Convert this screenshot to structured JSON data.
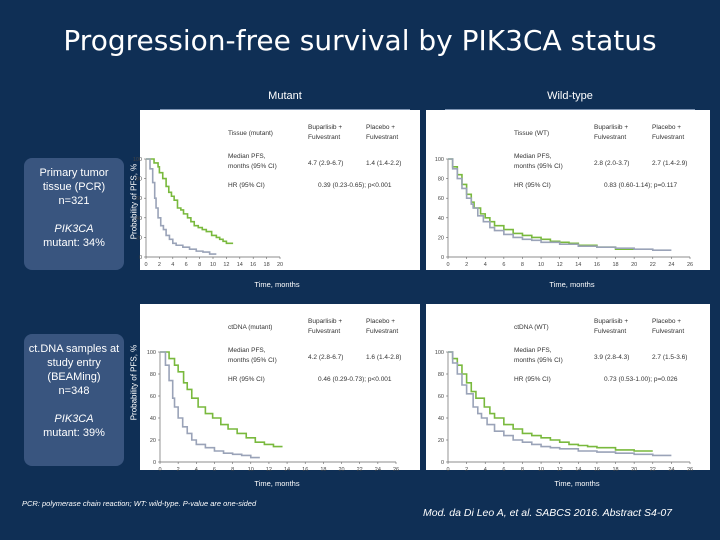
{
  "title": "Progression-free survival by PIK3CA status",
  "columns": {
    "mutant": "Mutant",
    "wildtype": "Wild-type"
  },
  "rows": [
    {
      "box": [
        "Primary tumor tissue (PCR)",
        "n=321",
        "PIK3CA",
        "mutant: 34%"
      ]
    },
    {
      "box": [
        "ct.DNA samples at study entry (BEAMing)",
        "n=348",
        "PIK3CA",
        "mutant: 39%"
      ]
    }
  ],
  "ylabel": "Probability of PFS, %",
  "xlabel": "Time, months",
  "footnote": "PCR: polymerase chain reaction; WT: wild-type. P-value are one-sided",
  "reference": "Mod. da Di Leo A, et al. SABCS 2016. Abstract S4-07",
  "colors": {
    "buparlisib": "#79b93d",
    "placebo": "#9aa3b8",
    "panel": "#ffffff",
    "box": "#39557f",
    "bg": "#0f2f55"
  },
  "chart_data": [
    {
      "type": "line",
      "tables": {
        "label": "Tissue (mutant)",
        "col1": "Buparlisib + Fulvestrant",
        "col2": "Placebo + Fulvestrant",
        "median_label": "Median PFS, months (95% CI)",
        "median1": "4.7 (2.9-6.7)",
        "median2": "1.4 (1.4-2.2)",
        "hr_label": "HR (95% CI)",
        "hr": "0.39 (0.23-0.65); p<0.001"
      },
      "yticks": [
        "100",
        "80",
        "60",
        "40",
        "20",
        "0"
      ],
      "xticks": [
        "0",
        "2",
        "4",
        "6",
        "8",
        "10",
        "12",
        "14",
        "16",
        "18",
        "20"
      ],
      "xlim": [
        0,
        20
      ],
      "ylim": [
        0,
        100
      ],
      "series": [
        {
          "key": "buparlisib",
          "x": [
            0,
            1.2,
            1.8,
            2,
            2.5,
            3,
            3.4,
            3.8,
            4.2,
            4.7,
            5.2,
            5.6,
            6.2,
            6.7,
            7.2,
            7.8,
            8.4,
            9,
            9.8,
            10.5,
            11,
            11.5,
            12,
            13
          ],
          "y": [
            100,
            96,
            92,
            86,
            80,
            72,
            66,
            62,
            58,
            50,
            48,
            44,
            40,
            36,
            32,
            30,
            28,
            26,
            22,
            20,
            18,
            16,
            14,
            14
          ]
        },
        {
          "key": "placebo",
          "x": [
            0,
            0.6,
            1,
            1.3,
            1.5,
            1.8,
            2.2,
            2.6,
            3,
            3.5,
            4,
            4.5,
            5.5,
            6.5,
            7.5,
            8.5,
            9.5,
            10.5
          ],
          "y": [
            100,
            90,
            76,
            60,
            50,
            40,
            32,
            28,
            22,
            18,
            14,
            12,
            10,
            8,
            6,
            5,
            3,
            3
          ]
        }
      ]
    },
    {
      "type": "line",
      "tables": {
        "label": "Tissue (WT)",
        "col1": "Buparlisib + Fulvestrant",
        "col2": "Placebo + Fulvestrant",
        "median_label": "Median PFS, months (95% CI)",
        "median1": "2.8 (2.0-3.7)",
        "median2": "2.7 (1.4-2.9)",
        "hr_label": "HR (95% CI)",
        "hr": "0.83 (0.60-1.14); p=0.117"
      },
      "yticks": [
        "100",
        "80",
        "60",
        "40",
        "20",
        "0"
      ],
      "xticks": [
        "0",
        "2",
        "4",
        "6",
        "8",
        "10",
        "12",
        "14",
        "16",
        "18",
        "20",
        "22",
        "24",
        "26"
      ],
      "xlim": [
        0,
        26
      ],
      "ylim": [
        0,
        100
      ],
      "series": [
        {
          "key": "buparlisib",
          "x": [
            0,
            0.5,
            1,
            1.5,
            2,
            2.5,
            2.8,
            3.5,
            4,
            4.5,
            5,
            6,
            7,
            8,
            9,
            10,
            11,
            12,
            13,
            14,
            16,
            18,
            20
          ],
          "y": [
            100,
            92,
            84,
            74,
            64,
            56,
            50,
            44,
            40,
            36,
            32,
            28,
            24,
            22,
            20,
            18,
            16,
            15,
            14,
            12,
            10,
            8,
            8
          ]
        },
        {
          "key": "placebo",
          "x": [
            0,
            0.5,
            1,
            1.5,
            2,
            2.5,
            2.7,
            3.2,
            3.8,
            4.5,
            5,
            6,
            7,
            8,
            9,
            10,
            12,
            14,
            16,
            18,
            20,
            22,
            24
          ],
          "y": [
            100,
            90,
            80,
            70,
            60,
            54,
            50,
            42,
            36,
            30,
            27,
            23,
            20,
            18,
            17,
            15,
            13,
            11,
            10,
            9,
            8,
            7,
            7
          ]
        }
      ]
    },
    {
      "type": "line",
      "tables": {
        "label": "ctDNA (mutant)",
        "col1": "Buparlisib + Fulvestrant",
        "col2": "Placebo + Fulvestrant",
        "median_label": "Median PFS, months (95% CI)",
        "median1": "4.2 (2.8-6.7)",
        "median2": "1.6 (1.4-2.8)",
        "hr_label": "HR (95% CI)",
        "hr": "0.46 (0.29-0.73); p<0.001"
      },
      "yticks": [
        "100",
        "80",
        "60",
        "40",
        "20",
        "0"
      ],
      "xticks": [
        "0",
        "2",
        "4",
        "6",
        "8",
        "10",
        "12",
        "14",
        "16",
        "18",
        "20",
        "22",
        "24",
        "26"
      ],
      "xlim": [
        0,
        26
      ],
      "ylim": [
        0,
        100
      ],
      "series": [
        {
          "key": "buparlisib",
          "x": [
            0,
            1,
            1.6,
            2,
            2.6,
            3,
            3.5,
            4.2,
            5,
            5.8,
            6.7,
            7.5,
            8.5,
            9.5,
            10.5,
            11.5,
            12.5,
            13.5
          ],
          "y": [
            100,
            94,
            88,
            82,
            72,
            66,
            58,
            50,
            44,
            40,
            34,
            30,
            26,
            22,
            18,
            16,
            14,
            14
          ]
        },
        {
          "key": "placebo",
          "x": [
            0,
            0.6,
            1,
            1.4,
            1.6,
            2,
            2.5,
            3,
            3.5,
            4,
            5,
            6,
            7,
            8,
            9,
            10,
            11
          ],
          "y": [
            100,
            88,
            74,
            58,
            50,
            40,
            32,
            26,
            20,
            16,
            13,
            10,
            8,
            7,
            6,
            4,
            4
          ]
        }
      ]
    },
    {
      "type": "line",
      "tables": {
        "label": "ctDNA (WT)",
        "col1": "Buparlisib + Fulvestrant",
        "col2": "Placebo + Fulvestrant",
        "median_label": "Median PFS, months (95% CI)",
        "median1": "3.9 (2.8-4.3)",
        "median2": "2.7 (1.5-3.6)",
        "hr_label": "HR (95% CI)",
        "hr": "0.73 (0.53-1.00); p=0.026"
      },
      "yticks": [
        "100",
        "80",
        "60",
        "40",
        "20",
        "0"
      ],
      "xticks": [
        "0",
        "2",
        "4",
        "6",
        "8",
        "10",
        "12",
        "14",
        "16",
        "18",
        "20",
        "22",
        "24",
        "26"
      ],
      "xlim": [
        0,
        26
      ],
      "ylim": [
        0,
        100
      ],
      "series": [
        {
          "key": "buparlisib",
          "x": [
            0,
            0.5,
            1,
            1.5,
            2,
            2.5,
            3,
            3.9,
            4.5,
            5,
            6,
            7,
            8,
            9,
            10,
            11,
            12,
            13,
            14,
            15,
            16,
            18,
            20,
            22
          ],
          "y": [
            100,
            94,
            88,
            80,
            72,
            64,
            58,
            50,
            44,
            40,
            34,
            30,
            26,
            24,
            22,
            20,
            18,
            16,
            15,
            14,
            13,
            11,
            10,
            10
          ]
        },
        {
          "key": "placebo",
          "x": [
            0,
            0.5,
            1,
            1.5,
            2,
            2.7,
            3.2,
            3.6,
            4.2,
            5,
            6,
            7,
            8,
            9,
            10,
            11,
            12,
            14,
            16,
            18,
            20,
            22,
            24
          ],
          "y": [
            100,
            90,
            80,
            70,
            62,
            50,
            44,
            40,
            34,
            28,
            24,
            20,
            18,
            16,
            14,
            13,
            12,
            10,
            9,
            8,
            7,
            6,
            6
          ]
        }
      ]
    }
  ]
}
